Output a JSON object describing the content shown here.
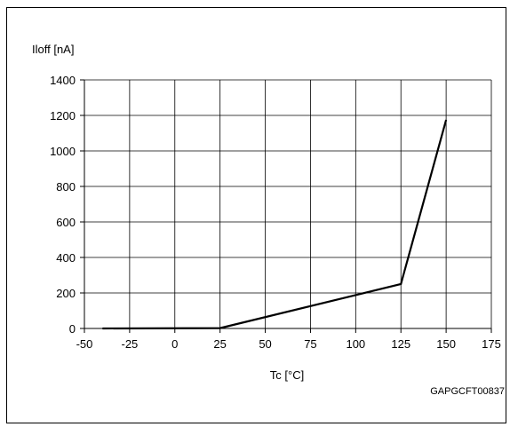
{
  "chart_data": {
    "type": "line",
    "ylabel": "Iloff [nA]",
    "xlabel": "Tc [°C]",
    "figure_code": "GAPGCFT00837",
    "xlim": [
      -50,
      175
    ],
    "ylim": [
      0,
      1400
    ],
    "x_ticks": [
      -50,
      -25,
      0,
      25,
      50,
      75,
      100,
      125,
      150,
      175
    ],
    "y_ticks": [
      0,
      200,
      400,
      600,
      800,
      1000,
      1200,
      1400
    ],
    "grid": true,
    "series": [
      {
        "x": [
          -40,
          25,
          125,
          150
        ],
        "y": [
          0,
          2,
          250,
          1175
        ]
      }
    ]
  }
}
